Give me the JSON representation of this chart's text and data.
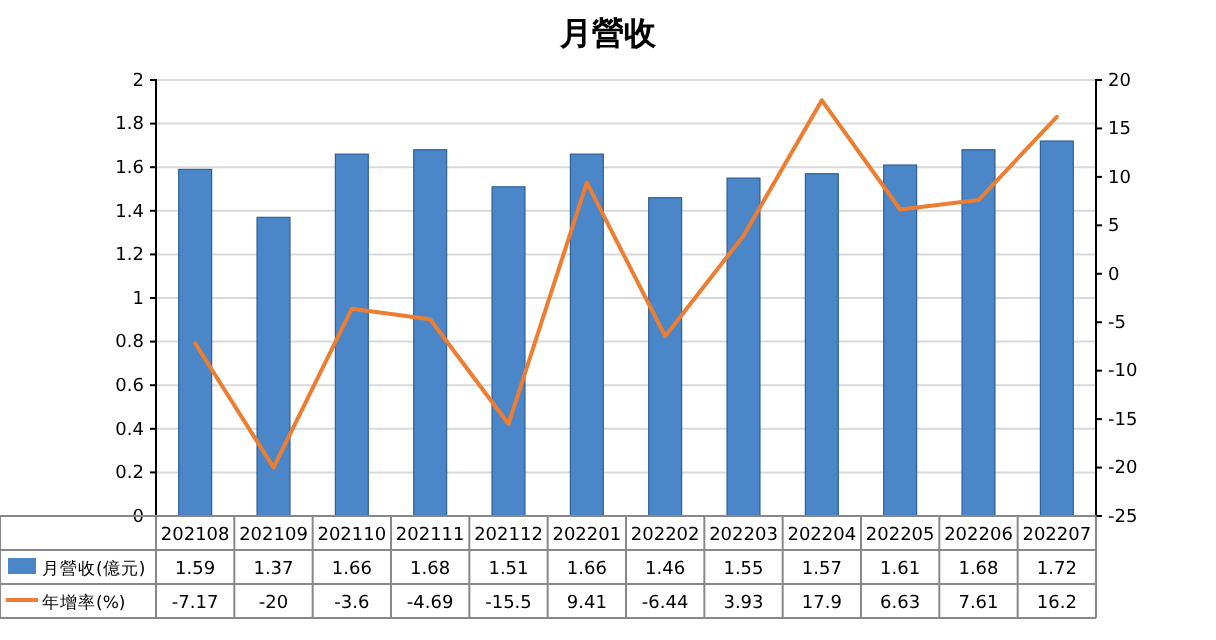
{
  "chart_data": {
    "type": "bar",
    "title": "月營收",
    "categories": [
      "202108",
      "202109",
      "202110",
      "202111",
      "202112",
      "202201",
      "202202",
      "202203",
      "202204",
      "202205",
      "202206",
      "202207"
    ],
    "series": [
      {
        "name": "月營收(億元)",
        "color": "#4a86c8",
        "values": [
          1.59,
          1.37,
          1.66,
          1.68,
          1.51,
          1.66,
          1.46,
          1.55,
          1.57,
          1.61,
          1.68,
          1.72
        ]
      },
      {
        "name": "年增率(%)",
        "type": "line",
        "axis": "y2",
        "color": "#ed7d31",
        "values": [
          -7.17,
          -20,
          -3.6,
          -4.69,
          -15.5,
          9.41,
          -6.44,
          3.93,
          17.9,
          6.63,
          7.61,
          16.2
        ]
      }
    ],
    "ylim": [
      0,
      2
    ],
    "yticks": [
      0,
      0.2,
      0.4,
      0.6,
      0.8,
      1,
      1.2,
      1.4,
      1.6,
      1.8,
      2
    ],
    "y2lim": [
      -25,
      20
    ],
    "y2ticks": [
      -25,
      -20,
      -15,
      -10,
      -5,
      0,
      5,
      10,
      15,
      20
    ],
    "grid": "y",
    "legend": "bottom",
    "data_labels": true,
    "marker": "none",
    "line_style": "solid"
  }
}
